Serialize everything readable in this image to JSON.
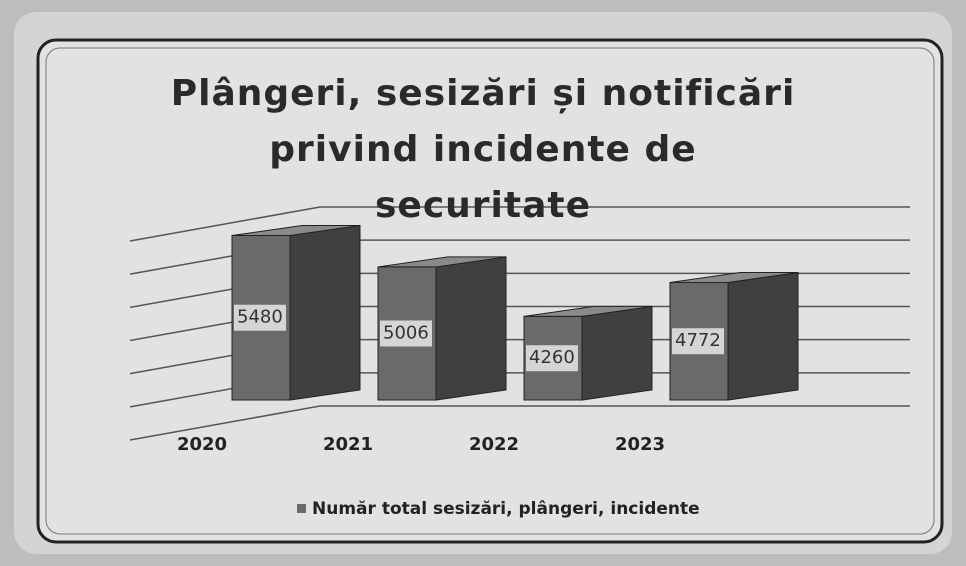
{
  "chart_data": {
    "type": "bar3d",
    "title": "Plângeri, sesizări și notificări privind incidente de securitate",
    "categories": [
      "2020",
      "2021",
      "2022",
      "2023"
    ],
    "series": [
      {
        "name": "Număr total sesizări, plângeri, incidente",
        "color": "#6a6a6a",
        "values": [
          5480,
          5006,
          4260,
          4772
        ]
      }
    ],
    "ylim": [
      3000,
      6000
    ],
    "yticks": [
      3000,
      3500,
      4000,
      4500,
      5000,
      5500,
      6000
    ],
    "grid": true,
    "legend": "bottom"
  }
}
